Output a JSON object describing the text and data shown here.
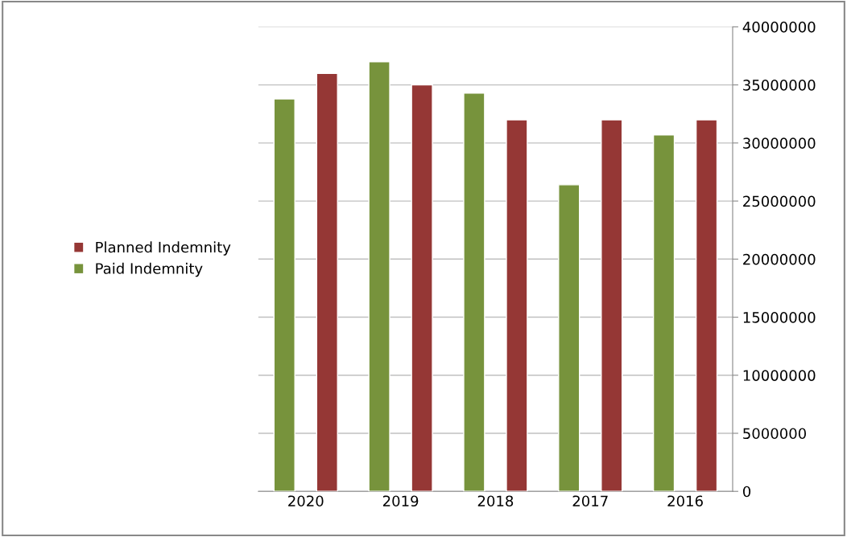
{
  "chart_data": {
    "type": "bar",
    "categories": [
      "2020",
      "2019",
      "2018",
      "2017",
      "2016"
    ],
    "series": [
      {
        "name": "Paid Indemnity",
        "color": "#77933c",
        "values": [
          33800000,
          37000000,
          34300000,
          26400000,
          30700000
        ]
      },
      {
        "name": "Planned Indemnity",
        "color": "#953735",
        "values": [
          36000000,
          35000000,
          32000000,
          32000000,
          32000000
        ]
      }
    ],
    "ylim": [
      0,
      40000000
    ],
    "yticks": [
      0,
      5000000,
      10000000,
      15000000,
      20000000,
      25000000,
      30000000,
      35000000,
      40000000
    ],
    "grid": "y",
    "legend": "left"
  }
}
